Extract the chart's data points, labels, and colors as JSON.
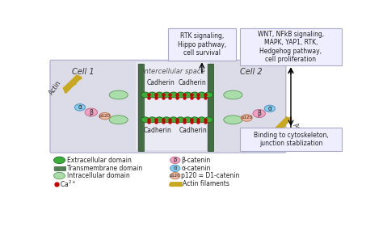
{
  "cell_bg": "#dcdce8",
  "intercellular_bg": "#eaeaf5",
  "box_bg": "#eeeeff",
  "box_edge": "#aaaacc",
  "cell1_label": "Cell 1",
  "cell2_label": "Cell 2",
  "intercellular_label": "Intercellular space",
  "rtk_box": "RTK signaling,\nHippo pathway,\ncell survival",
  "wnt_box": "WNT, NFkB signaling,\nMAPK, YAP1, RTK,\nHedgehog pathway,\ncell proliferation",
  "binding_box": "Binding to cytoskeleton,\njunction stablization",
  "green_dark": "#2a9a2a",
  "green_light": "#aaddaa",
  "green_mid": "#3ab03a",
  "pink": "#f0a0c0",
  "cyan": "#88ccee",
  "peach": "#f0b8a0",
  "red_dot": "#cc0000",
  "actin_color": "#c8a820",
  "transmembrane_color": "#5a8a5a",
  "transmembrane_stripe": "#2a4a2a",
  "cadherin_label_color": "#222222",
  "cell_label_color": "#333333",
  "inter_label_color": "#555555"
}
